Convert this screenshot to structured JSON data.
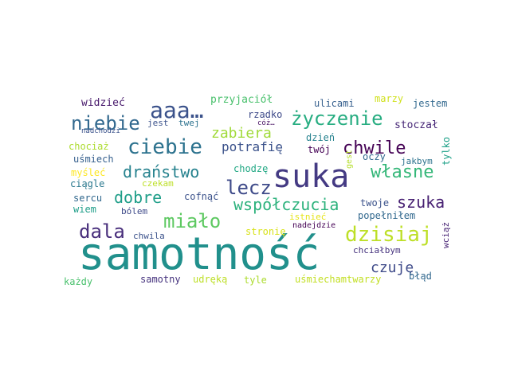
{
  "words": [
    {
      "text": "samotność",
      "color": "#21908c"
    },
    {
      "text": "suka",
      "color": "#443a83"
    },
    {
      "text": "aaa…",
      "color": "#3b528b"
    },
    {
      "text": "niebie",
      "color": "#31688e"
    },
    {
      "text": "ciebie",
      "color": "#2c728e"
    },
    {
      "text": "życzenie",
      "color": "#27ad81"
    },
    {
      "text": "chwile",
      "color": "#440154"
    },
    {
      "text": "lecz",
      "color": "#3e4a89"
    },
    {
      "text": "własne",
      "color": "#35b779"
    },
    {
      "text": "dala",
      "color": "#472d7b"
    },
    {
      "text": "miało",
      "color": "#5ec962"
    },
    {
      "text": "dzisiaj",
      "color": "#bddf26"
    },
    {
      "text": "szuka",
      "color": "#482173"
    },
    {
      "text": "współczucia",
      "color": "#2db27d"
    },
    {
      "text": "draństwo",
      "color": "#26828e"
    },
    {
      "text": "dobre",
      "color": "#1f9e89"
    },
    {
      "text": "zabiera",
      "color": "#a0da39"
    },
    {
      "text": "potrafię",
      "color": "#3b528b"
    },
    {
      "text": "czuję",
      "color": "#3e4a89"
    },
    {
      "text": "widzieć",
      "color": "#481a6c"
    },
    {
      "text": "przyjaciół",
      "color": "#4ac16d"
    },
    {
      "text": "ulicami",
      "color": "#355f8d"
    },
    {
      "text": "marzy",
      "color": "#d0e11c"
    },
    {
      "text": "jestem",
      "color": "#31688e"
    },
    {
      "text": "jest",
      "color": "#3b528b"
    },
    {
      "text": "twej",
      "color": "#2c728e"
    },
    {
      "text": "rzadko",
      "color": "#3e4a89"
    },
    {
      "text": "cóż…",
      "color": "#471063"
    },
    {
      "text": "nadchodzi",
      "color": "#3b528b"
    },
    {
      "text": "stoczał",
      "color": "#482878"
    },
    {
      "text": "chociaż",
      "color": "#addc30"
    },
    {
      "text": "twój",
      "color": "#440154"
    },
    {
      "text": "dzień",
      "color": "#26828e"
    },
    {
      "text": "oczy",
      "color": "#31688e"
    },
    {
      "text": "tylko",
      "color": "#1fa188"
    },
    {
      "text": "uśmiech",
      "color": "#355f8d"
    },
    {
      "text": "gest",
      "color": "#b5de2b"
    },
    {
      "text": "jakbym",
      "color": "#2c728e"
    },
    {
      "text": "myśleć",
      "color": "#fde725"
    },
    {
      "text": "chodzę",
      "color": "#22a884"
    },
    {
      "text": "czekam",
      "color": "#bddf26"
    },
    {
      "text": "ciągle",
      "color": "#2a788e"
    },
    {
      "text": "cofnąć",
      "color": "#3b528b"
    },
    {
      "text": "sercu",
      "color": "#31688e"
    },
    {
      "text": "twoje",
      "color": "#3b528b"
    },
    {
      "text": "wiem",
      "color": "#1f9e89"
    },
    {
      "text": "bólem",
      "color": "#3e4a89"
    },
    {
      "text": "istnieć",
      "color": "#e5e419"
    },
    {
      "text": "popełniłem",
      "color": "#31688e"
    },
    {
      "text": "stronię",
      "color": "#d8e219"
    },
    {
      "text": "nadejdzie",
      "color": "#440154"
    },
    {
      "text": "chwila",
      "color": "#3b528b"
    },
    {
      "text": "wciąż",
      "color": "#482475"
    },
    {
      "text": "chciałbym",
      "color": "#46337e"
    },
    {
      "text": "każdy",
      "color": "#4ac16d"
    },
    {
      "text": "samotny",
      "color": "#46337e"
    },
    {
      "text": "udręką",
      "color": "#bddf26"
    },
    {
      "text": "tyle",
      "color": "#addc30"
    },
    {
      "text": "uśmiechamtwarzy",
      "color": "#c2df23"
    },
    {
      "text": "błąd",
      "color": "#31688e"
    }
  ]
}
